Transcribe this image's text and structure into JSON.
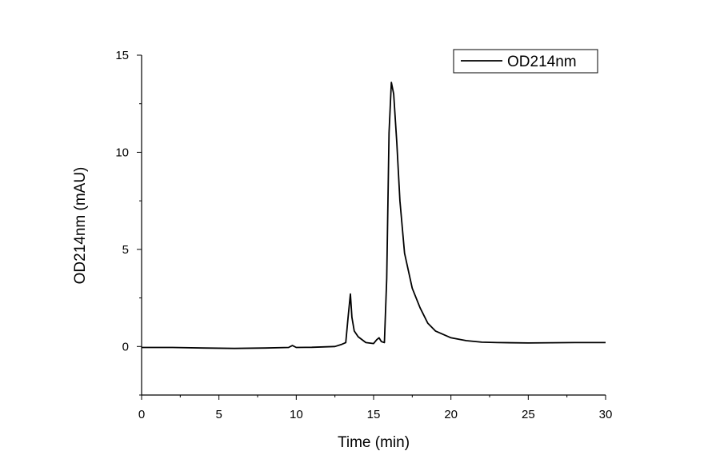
{
  "chart_data": {
    "type": "line",
    "title": "",
    "xlabel": "Time (min)",
    "ylabel": "OD214nm (mAU)",
    "xlim": [
      0,
      30
    ],
    "ylim": [
      -2.5,
      15
    ],
    "xticks": [
      0,
      5,
      10,
      15,
      20,
      25,
      30
    ],
    "yticks": [
      0,
      5,
      10,
      15
    ],
    "grid": false,
    "legend": {
      "position": "top-right",
      "entries": [
        "OD214nm"
      ]
    },
    "series": [
      {
        "name": "OD214nm",
        "color": "#000000",
        "x": [
          0,
          2,
          4,
          6,
          8,
          9.5,
          9.75,
          10,
          11,
          12.5,
          12.9,
          13.2,
          13.35,
          13.5,
          13.6,
          13.75,
          14.0,
          14.5,
          15.0,
          15.2,
          15.35,
          15.5,
          15.7,
          15.85,
          16.0,
          16.15,
          16.3,
          16.5,
          16.7,
          17.0,
          17.5,
          18.0,
          18.5,
          19.0,
          20.0,
          21.0,
          22.0,
          23.0,
          25.0,
          28.0,
          30.0
        ],
        "y": [
          -0.05,
          -0.05,
          -0.08,
          -0.1,
          -0.08,
          -0.05,
          0.05,
          -0.05,
          -0.04,
          0.0,
          0.1,
          0.2,
          1.5,
          2.7,
          1.5,
          0.8,
          0.5,
          0.2,
          0.15,
          0.35,
          0.45,
          0.25,
          0.2,
          3.5,
          11.0,
          13.6,
          13.0,
          10.5,
          7.5,
          4.8,
          3.0,
          2.0,
          1.2,
          0.8,
          0.45,
          0.3,
          0.22,
          0.2,
          0.18,
          0.2,
          0.2
        ]
      }
    ]
  }
}
